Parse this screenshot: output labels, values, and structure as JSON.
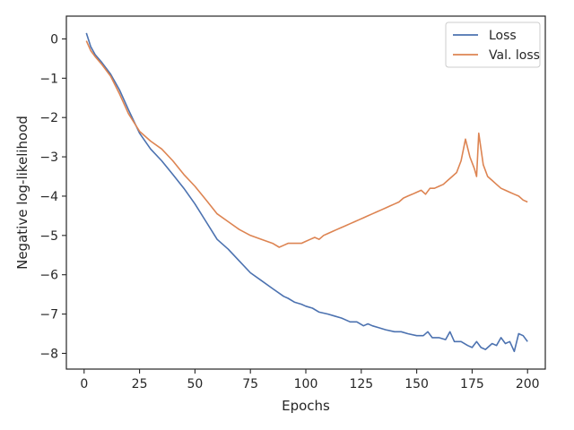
{
  "chart_data": {
    "type": "line",
    "title": "",
    "xlabel": "Epochs",
    "ylabel": "Negative log-likelihood",
    "xlim": [
      -8,
      208
    ],
    "ylim": [
      -8.4,
      0.58
    ],
    "xticks": [
      0,
      25,
      50,
      75,
      100,
      125,
      150,
      175,
      200
    ],
    "xtick_labels": [
      "0",
      "25",
      "50",
      "75",
      "100",
      "125",
      "150",
      "175",
      "200"
    ],
    "yticks": [
      0,
      -1,
      -2,
      -3,
      -4,
      -5,
      -6,
      -7,
      -8
    ],
    "ytick_labels": [
      "0",
      "−1",
      "−2",
      "−3",
      "−4",
      "−5",
      "−6",
      "−7",
      "−8"
    ],
    "grid": false,
    "legend_position": "top-right",
    "series": [
      {
        "name": "Loss",
        "color": "#4c72b0",
        "x": [
          1,
          3,
          5,
          8,
          12,
          16,
          20,
          25,
          30,
          35,
          40,
          45,
          50,
          55,
          60,
          65,
          70,
          75,
          80,
          85,
          90,
          92,
          95,
          98,
          100,
          103,
          106,
          110,
          113,
          116,
          120,
          123,
          126,
          128,
          130,
          133,
          136,
          140,
          143,
          146,
          150,
          153,
          155,
          157,
          160,
          163,
          165,
          167,
          170,
          173,
          175,
          177,
          179,
          181,
          184,
          186,
          188,
          190,
          192,
          194,
          196,
          198,
          200
        ],
        "values": [
          0.15,
          -0.2,
          -0.4,
          -0.6,
          -0.9,
          -1.3,
          -1.8,
          -2.4,
          -2.8,
          -3.1,
          -3.45,
          -3.8,
          -4.2,
          -4.65,
          -5.1,
          -5.35,
          -5.65,
          -5.95,
          -6.15,
          -6.35,
          -6.55,
          -6.6,
          -6.7,
          -6.75,
          -6.8,
          -6.85,
          -6.95,
          -7.0,
          -7.05,
          -7.1,
          -7.2,
          -7.2,
          -7.3,
          -7.25,
          -7.3,
          -7.35,
          -7.4,
          -7.45,
          -7.45,
          -7.5,
          -7.55,
          -7.55,
          -7.45,
          -7.6,
          -7.6,
          -7.65,
          -7.45,
          -7.7,
          -7.7,
          -7.8,
          -7.85,
          -7.7,
          -7.85,
          -7.9,
          -7.75,
          -7.8,
          -7.6,
          -7.75,
          -7.7,
          -7.95,
          -7.5,
          -7.55,
          -7.7
        ]
      },
      {
        "name": "Val. loss",
        "color": "#dd8452",
        "x": [
          1,
          3,
          5,
          8,
          12,
          16,
          20,
          25,
          30,
          35,
          40,
          45,
          50,
          55,
          60,
          65,
          70,
          75,
          80,
          85,
          88,
          90,
          92,
          95,
          98,
          100,
          102,
          104,
          106,
          108,
          110,
          112,
          114,
          116,
          118,
          120,
          122,
          124,
          126,
          128,
          130,
          132,
          134,
          136,
          138,
          140,
          142,
          144,
          146,
          148,
          150,
          152,
          154,
          156,
          158,
          160,
          162,
          164,
          166,
          168,
          170,
          172,
          174,
          176,
          177,
          178,
          180,
          182,
          184,
          186,
          188,
          190,
          192,
          194,
          196,
          198,
          200
        ],
        "values": [
          -0.05,
          -0.3,
          -0.45,
          -0.65,
          -0.95,
          -1.4,
          -1.9,
          -2.35,
          -2.6,
          -2.8,
          -3.1,
          -3.45,
          -3.75,
          -4.1,
          -4.45,
          -4.65,
          -4.85,
          -5.0,
          -5.1,
          -5.2,
          -5.3,
          -5.25,
          -5.2,
          -5.2,
          -5.2,
          -5.15,
          -5.1,
          -5.05,
          -5.1,
          -5.0,
          -4.95,
          -4.9,
          -4.85,
          -4.8,
          -4.75,
          -4.7,
          -4.65,
          -4.6,
          -4.55,
          -4.5,
          -4.45,
          -4.4,
          -4.35,
          -4.3,
          -4.25,
          -4.2,
          -4.15,
          -4.05,
          -4.0,
          -3.95,
          -3.9,
          -3.85,
          -3.95,
          -3.8,
          -3.8,
          -3.75,
          -3.7,
          -3.6,
          -3.5,
          -3.4,
          -3.1,
          -2.55,
          -3.0,
          -3.3,
          -3.5,
          -2.4,
          -3.2,
          -3.5,
          -3.6,
          -3.7,
          -3.8,
          -3.85,
          -3.9,
          -3.95,
          -4.0,
          -4.1,
          -4.15
        ]
      }
    ]
  }
}
